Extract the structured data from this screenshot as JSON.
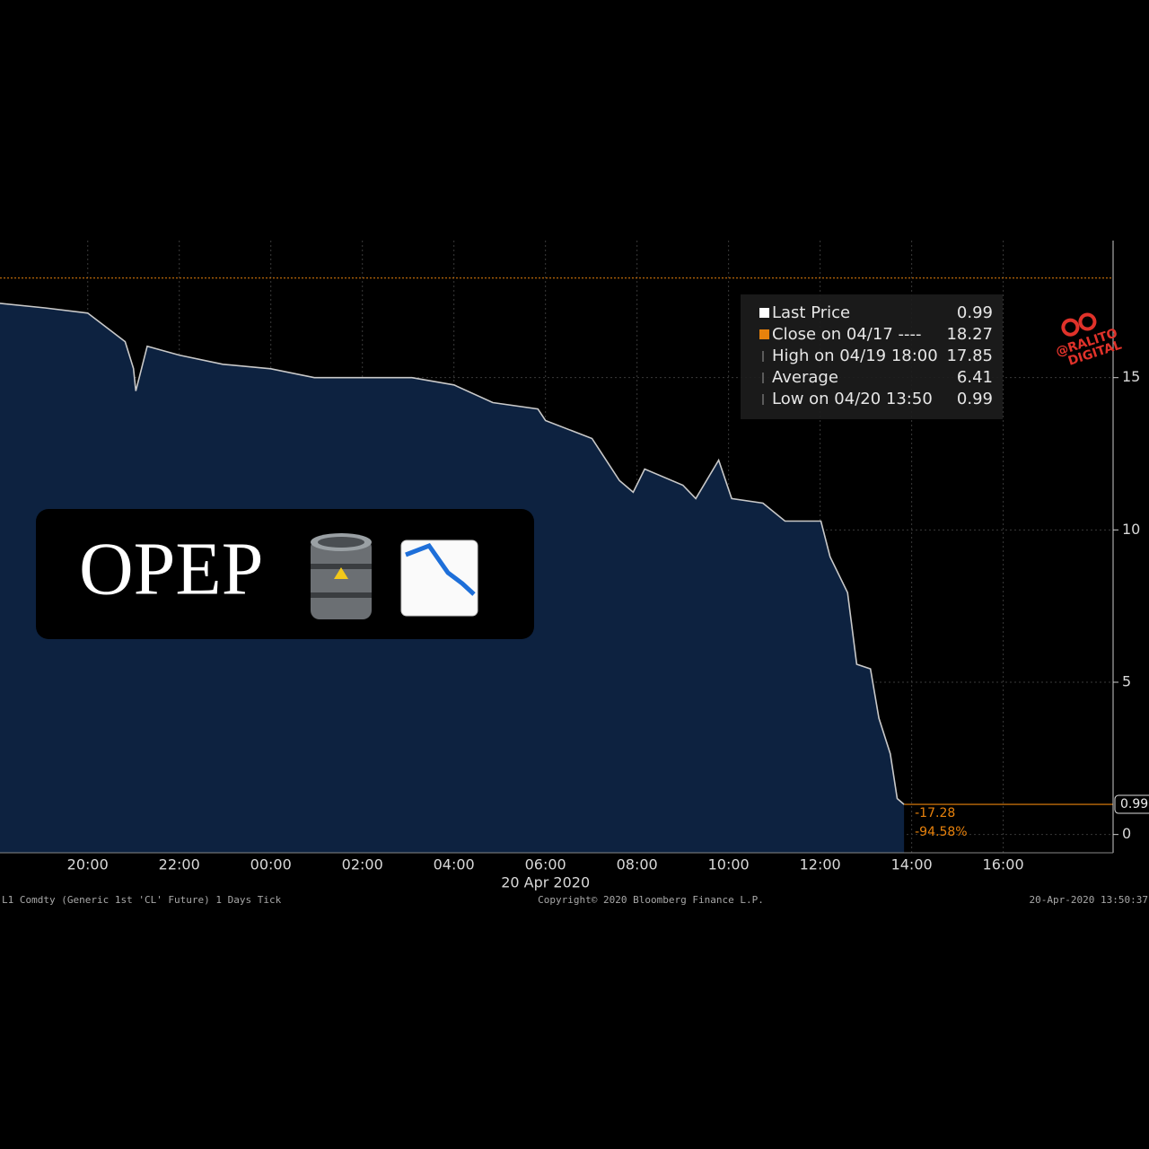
{
  "chart_data": {
    "type": "line",
    "x": [
      "18:05",
      "19:04",
      "20:00",
      "20:49",
      "21:00",
      "21:03",
      "21:18",
      "22:00",
      "22:57",
      "00:00",
      "00:57",
      "02:00",
      "03:05",
      "04:00",
      "04:51",
      "05:50",
      "06:00",
      "07:01",
      "07:37",
      "07:55",
      "08:10",
      "09:00",
      "09:17",
      "09:47",
      "10:04",
      "10:45",
      "11:14",
      "12:01",
      "12:13",
      "12:36",
      "12:48",
      "13:06",
      "13:17",
      "13:32",
      "13:41",
      "13:50"
    ],
    "series": [
      {
        "name": "Last Price",
        "color": "#c9c9c9",
        "last": 0.99,
        "values": [
          17.44,
          17.29,
          17.12,
          16.18,
          15.3,
          14.56,
          16.03,
          15.74,
          15.44,
          15.29,
          15.0,
          15.0,
          15.0,
          14.76,
          14.18,
          13.97,
          13.59,
          13.0,
          11.62,
          11.24,
          12.0,
          11.47,
          11.03,
          12.29,
          11.03,
          10.88,
          10.29,
          10.29,
          9.12,
          7.94,
          5.59,
          5.44,
          3.82,
          2.65,
          1.18,
          0.99
        ]
      }
    ],
    "xlim": [
      "18:05",
      "18:24"
    ],
    "xticks": [
      "20:00",
      "22:00",
      "00:00",
      "02:00",
      "04:00",
      "06:00",
      "08:00",
      "10:00",
      "12:00",
      "14:00",
      "16:00"
    ],
    "date_label": "20 Apr 2020",
    "ylim": [
      -0.6,
      19.5
    ],
    "yticks": [
      0,
      5,
      10,
      15
    ],
    "grid": true,
    "legend": [
      {
        "label": "Close on 04/17 ----",
        "value": 18.27,
        "color": "#e8820c"
      },
      {
        "label": "High on 04/19 18:00",
        "value": 17.85
      },
      {
        "label": "Average",
        "value": 6.41
      },
      {
        "label": "Low on 04/20 13:50",
        "value": 0.99
      }
    ],
    "annotations": [
      "-17.28",
      "-94.58%"
    ],
    "footer": {
      "left": "L1 Comdty (Generic 1st 'CL' Future) 1 Days  Tick",
      "center": "Copyright© 2020 Bloomberg Finance L.P.",
      "right": "20-Apr-2020 13:50:37"
    }
  },
  "overlay": {
    "text": "OPEP"
  },
  "watermark": {
    "line1": "@RALITO",
    "line2": "DIGITAL"
  }
}
